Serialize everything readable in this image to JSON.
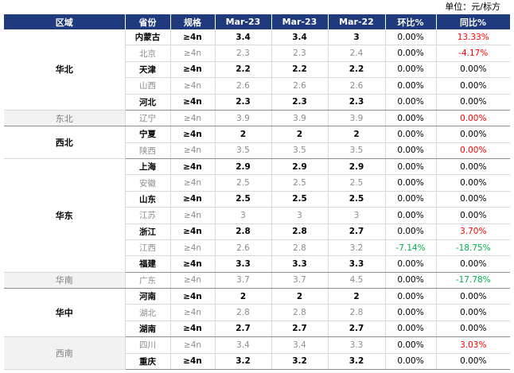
{
  "unit_label": "单位：元/标方",
  "headers": [
    "区域",
    "省份",
    "规格",
    "Mar-23",
    "Mar-23",
    "Mar-22",
    "环比%",
    "同比%"
  ],
  "groups": [
    {
      "region": "华北",
      "gray": false,
      "rows": [
        {
          "province": "内蒙古",
          "spec": "≥4n",
          "v1": "3.4",
          "v2": "3.4",
          "v3": "3",
          "mom": "0.00%",
          "yoy": "13.33%",
          "bold": true,
          "mom_color": "",
          "yoy_color": "red"
        },
        {
          "province": "北京",
          "spec": "≥4n",
          "v1": "2.3",
          "v2": "2.3",
          "v3": "2.4",
          "mom": "0.00%",
          "yoy": "-4.17%",
          "bold": false,
          "mom_color": "",
          "yoy_color": "red"
        },
        {
          "province": "天津",
          "spec": "≥4n",
          "v1": "2.2",
          "v2": "2.2",
          "v3": "2.2",
          "mom": "0.00%",
          "yoy": "0.00%",
          "bold": true,
          "mom_color": "",
          "yoy_color": ""
        },
        {
          "province": "山西",
          "spec": "≥4n",
          "v1": "2.6",
          "v2": "2.6",
          "v3": "2.6",
          "mom": "0.00%",
          "yoy": "0.00%",
          "bold": false,
          "mom_color": "",
          "yoy_color": ""
        },
        {
          "province": "河北",
          "spec": "≥4n",
          "v1": "2.3",
          "v2": "2.3",
          "v3": "2.3",
          "mom": "0.00%",
          "yoy": "0.00%",
          "bold": true,
          "mom_color": "",
          "yoy_color": ""
        }
      ]
    },
    {
      "region": "东北",
      "gray": true,
      "rows": [
        {
          "province": "辽宁",
          "spec": "≥4n",
          "v1": "3.9",
          "v2": "3.9",
          "v3": "3.9",
          "mom": "0.00%",
          "yoy": "0.00%",
          "bold": false,
          "mom_color": "",
          "yoy_color": "red"
        }
      ]
    },
    {
      "region": "西北",
      "gray": false,
      "rows": [
        {
          "province": "宁夏",
          "spec": "≥4n",
          "v1": "2",
          "v2": "2",
          "v3": "2",
          "mom": "0.00%",
          "yoy": "0.00%",
          "bold": true,
          "mom_color": "",
          "yoy_color": ""
        },
        {
          "province": "陕西",
          "spec": "≥4n",
          "v1": "3.5",
          "v2": "3.5",
          "v3": "3.5",
          "mom": "0.00%",
          "yoy": "0.00%",
          "bold": false,
          "mom_color": "",
          "yoy_color": "red"
        }
      ]
    },
    {
      "region": "华东",
      "gray": false,
      "rows": [
        {
          "province": "上海",
          "spec": "≥4n",
          "v1": "2.9",
          "v2": "2.9",
          "v3": "2.9",
          "mom": "0.00%",
          "yoy": "0.00%",
          "bold": true,
          "mom_color": "",
          "yoy_color": ""
        },
        {
          "province": "安徽",
          "spec": "≥4n",
          "v1": "2.5",
          "v2": "2.5",
          "v3": "2.5",
          "mom": "0.00%",
          "yoy": "0.00%",
          "bold": false,
          "mom_color": "",
          "yoy_color": ""
        },
        {
          "province": "山东",
          "spec": "≥4n",
          "v1": "2.5",
          "v2": "2.5",
          "v3": "2.5",
          "mom": "0.00%",
          "yoy": "0.00%",
          "bold": true,
          "mom_color": "",
          "yoy_color": ""
        },
        {
          "province": "江苏",
          "spec": "≥4n",
          "v1": "3",
          "v2": "3",
          "v3": "3",
          "mom": "0.00%",
          "yoy": "0.00%",
          "bold": false,
          "mom_color": "",
          "yoy_color": ""
        },
        {
          "province": "浙江",
          "spec": "≥4n",
          "v1": "2.8",
          "v2": "2.8",
          "v3": "2.7",
          "mom": "0.00%",
          "yoy": "3.70%",
          "bold": true,
          "mom_color": "",
          "yoy_color": "red"
        },
        {
          "province": "江西",
          "spec": "≥4n",
          "v1": "2.6",
          "v2": "2.8",
          "v3": "3.2",
          "mom": "-7.14%",
          "yoy": "-18.75%",
          "bold": false,
          "mom_color": "green",
          "yoy_color": "green"
        },
        {
          "province": "福建",
          "spec": "≥4n",
          "v1": "3.3",
          "v2": "3.3",
          "v3": "3.3",
          "mom": "0.00%",
          "yoy": "0.00%",
          "bold": true,
          "mom_color": "",
          "yoy_color": ""
        }
      ]
    },
    {
      "region": "华南",
      "gray": true,
      "rows": [
        {
          "province": "广东",
          "spec": "≥4n",
          "v1": "3.7",
          "v2": "3.7",
          "v3": "4.5",
          "mom": "0.00%",
          "yoy": "-17.78%",
          "bold": false,
          "mom_color": "",
          "yoy_color": "green"
        }
      ]
    },
    {
      "region": "华中",
      "gray": false,
      "rows": [
        {
          "province": "河南",
          "spec": "≥4n",
          "v1": "2",
          "v2": "2",
          "v3": "2",
          "mom": "0.00%",
          "yoy": "0.00%",
          "bold": true,
          "mom_color": "",
          "yoy_color": ""
        },
        {
          "province": "湖北",
          "spec": "≥4n",
          "v1": "2.8",
          "v2": "2.8",
          "v3": "2.8",
          "mom": "0.00%",
          "yoy": "0.00%",
          "bold": false,
          "mom_color": "",
          "yoy_color": ""
        },
        {
          "province": "湖南",
          "spec": "≥4n",
          "v1": "2.7",
          "v2": "2.7",
          "v3": "2.7",
          "mom": "0.00%",
          "yoy": "0.00%",
          "bold": true,
          "mom_color": "",
          "yoy_color": ""
        }
      ]
    },
    {
      "region": "西南",
      "gray": true,
      "rows": [
        {
          "province": "四川",
          "spec": "≥4n",
          "v1": "3.4",
          "v2": "3.4",
          "v3": "3.3",
          "mom": "0.00%",
          "yoy": "3.03%",
          "bold": false,
          "mom_color": "",
          "yoy_color": "red"
        },
        {
          "province": "重庆",
          "spec": "≥4n",
          "v1": "3.2",
          "v2": "3.2",
          "v3": "3.2",
          "mom": "0.00%",
          "yoy": "0.00%",
          "bold": true,
          "mom_color": "",
          "yoy_color": ""
        }
      ]
    }
  ],
  "colors": {
    "header_bg": "#1f3a7d",
    "red": "#ff0000",
    "green": "#00b050",
    "gray_text": "#8c8c8c"
  }
}
